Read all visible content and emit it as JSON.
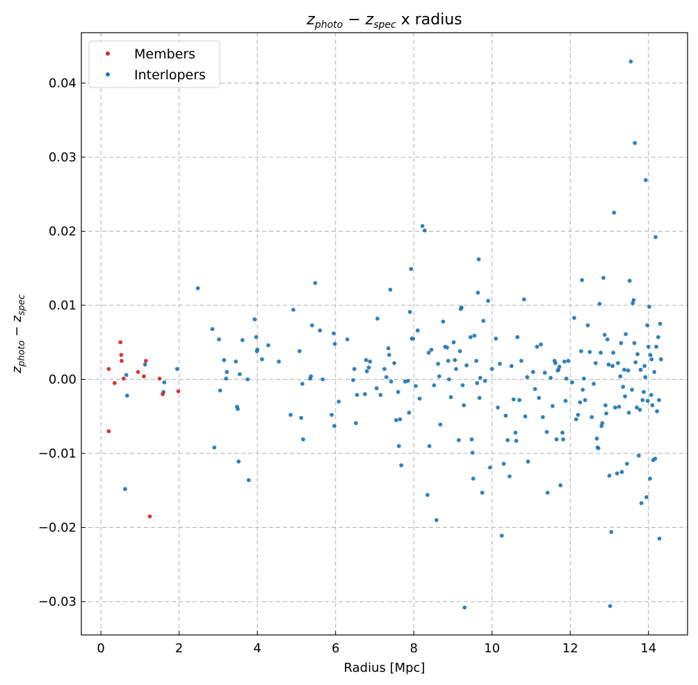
{
  "chart_data": {
    "type": "scatter",
    "title": "z_photo − z_spec x radius",
    "title_parts": {
      "var1": "z",
      "sub1": "photo",
      "op": " − ",
      "var2": "z",
      "sub2": "spec",
      "suffix": " x radius"
    },
    "xlabel": "Radius [Mpc]",
    "ylabel_parts": {
      "var1": "z",
      "sub1": "photo",
      "op": " − ",
      "var2": "z",
      "sub2": "spec"
    },
    "xlim": [
      -0.5,
      15.0
    ],
    "ylim": [
      -0.0345,
      0.0468
    ],
    "x_ticks": [
      0,
      2,
      4,
      6,
      8,
      10,
      12,
      14
    ],
    "x_tick_labels": [
      "0",
      "2",
      "4",
      "6",
      "8",
      "10",
      "12",
      "14"
    ],
    "y_ticks": [
      0.04,
      0.03,
      0.02,
      0.01,
      0.0,
      -0.01,
      -0.02,
      -0.03
    ],
    "y_tick_labels": [
      "0.04",
      "0.03",
      "0.02",
      "0.01",
      "0.00",
      "−0.01",
      "−0.02",
      "−0.03"
    ],
    "grid": true,
    "legend_position": "top-left",
    "series": [
      {
        "name": "Members",
        "color": "#d62728",
        "points": [
          [
            0.2,
            0.0014
          ],
          [
            0.2,
            -0.007
          ],
          [
            0.35,
            -0.0005
          ],
          [
            0.5,
            0.005
          ],
          [
            0.52,
            0.0033
          ],
          [
            0.53,
            0.0025
          ],
          [
            0.58,
            0.0001
          ],
          [
            0.95,
            0.001
          ],
          [
            1.1,
            0.0004
          ],
          [
            1.15,
            0.0025
          ],
          [
            1.25,
            -0.0185
          ],
          [
            1.5,
            0.0001
          ],
          [
            1.58,
            -0.002
          ],
          [
            1.98,
            -0.0016
          ]
        ]
      },
      {
        "name": "Interlopers",
        "color": "#1f77b4",
        "points": [
          [
            0.62,
            -0.0148
          ],
          [
            0.65,
            0.0006
          ],
          [
            0.67,
            -0.0022
          ],
          [
            1.13,
            0.002
          ],
          [
            1.6,
            -0.0017
          ],
          [
            1.62,
            -0.0004
          ],
          [
            1.95,
            0.0014
          ],
          [
            2.48,
            0.0123
          ],
          [
            2.85,
            0.0068
          ],
          [
            2.9,
            -0.0092
          ],
          [
            3.02,
            0.0054
          ],
          [
            3.05,
            -0.0015
          ],
          [
            3.15,
            0.0026
          ],
          [
            3.2,
            0.0001
          ],
          [
            3.22,
            0.001
          ],
          [
            3.45,
            0.0024
          ],
          [
            3.48,
            -0.0037
          ],
          [
            3.5,
            -0.004
          ],
          [
            3.52,
            -0.0111
          ],
          [
            3.55,
            0.0007
          ],
          [
            3.62,
            0.0053
          ],
          [
            3.75,
            0.0
          ],
          [
            3.78,
            -0.0136
          ],
          [
            3.93,
            0.0081
          ],
          [
            3.97,
            0.0057
          ],
          [
            3.99,
            0.0038
          ],
          [
            4.0,
            0.004
          ],
          [
            4.12,
            0.0027
          ],
          [
            4.28,
            0.0046
          ],
          [
            4.55,
            0.0024
          ],
          [
            4.85,
            -0.0048
          ],
          [
            4.92,
            0.0094
          ],
          [
            5.08,
            0.0038
          ],
          [
            5.12,
            -0.0052
          ],
          [
            5.15,
            -0.0006
          ],
          [
            5.17,
            -0.0081
          ],
          [
            5.35,
            0.0001
          ],
          [
            5.37,
            0.0004
          ],
          [
            5.4,
            0.0073
          ],
          [
            5.48,
            0.013
          ],
          [
            5.6,
            0.0066
          ],
          [
            5.67,
            0.0
          ],
          [
            5.9,
            -0.0048
          ],
          [
            5.95,
            0.0062
          ],
          [
            5.97,
            -0.0063
          ],
          [
            5.98,
            0.0048
          ],
          [
            6.08,
            -0.003
          ],
          [
            6.3,
            0.0054
          ],
          [
            6.45,
            -0.0001
          ],
          [
            6.48,
            0.0014
          ],
          [
            6.52,
            -0.0059
          ],
          [
            6.55,
            -0.0021
          ],
          [
            6.75,
            -0.002
          ],
          [
            6.78,
            0.0026
          ],
          [
            6.8,
            0.0011
          ],
          [
            6.85,
            0.0016
          ],
          [
            6.88,
            0.0024
          ],
          [
            7.05,
            -0.0012
          ],
          [
            7.07,
            0.0082
          ],
          [
            7.15,
            -0.0021
          ],
          [
            7.25,
            0.0014
          ],
          [
            7.3,
            0.0003
          ],
          [
            7.35,
            0.0042
          ],
          [
            7.37,
            0.0033
          ],
          [
            7.4,
            0.0121
          ],
          [
            7.42,
            -0.0003
          ],
          [
            7.5,
            0.0022
          ],
          [
            7.55,
            -0.0055
          ],
          [
            7.6,
            -0.0017
          ],
          [
            7.62,
            -0.009
          ],
          [
            7.65,
            -0.0054
          ],
          [
            7.68,
            -0.0116
          ],
          [
            7.78,
            -0.0003
          ],
          [
            7.85,
            -0.0002
          ],
          [
            7.88,
            -0.0045
          ],
          [
            7.9,
            0.0091
          ],
          [
            7.93,
            0.0149
          ],
          [
            7.95,
            0.0055
          ],
          [
            7.98,
            0.0055
          ],
          [
            8.05,
            -0.0009
          ],
          [
            8.1,
            0.0066
          ],
          [
            8.15,
            -0.0026
          ],
          [
            8.22,
            0.0207
          ],
          [
            8.28,
            0.0201
          ],
          [
            8.35,
            -0.0156
          ],
          [
            8.38,
            0.0036
          ],
          [
            8.4,
            -0.009
          ],
          [
            8.45,
            0.004
          ],
          [
            8.52,
            -0.0008
          ],
          [
            8.58,
            -0.019
          ],
          [
            8.62,
            0.0021
          ],
          [
            8.65,
            0.0004
          ],
          [
            8.68,
            -0.0061
          ],
          [
            8.75,
            0.0078
          ],
          [
            8.8,
            0.0044
          ],
          [
            8.85,
            0.0043
          ],
          [
            8.88,
            0.0025
          ],
          [
            8.9,
            0.0
          ],
          [
            8.95,
            -0.0024
          ],
          [
            9.02,
            0.005
          ],
          [
            9.05,
            0.0026
          ],
          [
            9.08,
            0.0014
          ],
          [
            9.15,
            -0.0082
          ],
          [
            9.18,
            0.0038
          ],
          [
            9.2,
            0.0095
          ],
          [
            9.22,
            0.0097
          ],
          [
            9.25,
            -0.0008
          ],
          [
            9.28,
            -0.0035
          ],
          [
            9.3,
            -0.0308
          ],
          [
            9.35,
            0.0019
          ],
          [
            9.45,
            0.0057
          ],
          [
            9.48,
            -0.0081
          ],
          [
            9.5,
            -0.0099
          ],
          [
            9.52,
            -0.0134
          ],
          [
            9.55,
            0.0059
          ],
          [
            9.6,
            0.0025
          ],
          [
            9.62,
            -0.0005
          ],
          [
            9.64,
            0.0117
          ],
          [
            9.66,
            0.0162
          ],
          [
            9.68,
            -0.0025
          ],
          [
            9.7,
            0.0002
          ],
          [
            9.75,
            -0.0153
          ],
          [
            9.78,
            0.0079
          ],
          [
            9.82,
            -0.0002
          ],
          [
            9.9,
            0.0106
          ],
          [
            9.95,
            -0.0119
          ],
          [
            10.0,
            0.0014
          ],
          [
            10.1,
            0.0055
          ],
          [
            10.15,
            -0.0038
          ],
          [
            10.2,
            0.0021
          ],
          [
            10.25,
            -0.0211
          ],
          [
            10.3,
            -0.0114
          ],
          [
            10.35,
            -0.0049
          ],
          [
            10.4,
            -0.0082
          ],
          [
            10.45,
            -0.0131
          ],
          [
            10.5,
            0.0018
          ],
          [
            10.55,
            -0.0027
          ],
          [
            10.6,
            -0.0072
          ],
          [
            10.62,
            -0.0083
          ],
          [
            10.65,
            0.0057
          ],
          [
            10.7,
            -0.0028
          ],
          [
            10.75,
            0.0025
          ],
          [
            10.82,
            0.0108
          ],
          [
            10.85,
            -0.005
          ],
          [
            10.9,
            0.0003
          ],
          [
            10.92,
            -0.0111
          ],
          [
            11.05,
            0.001
          ],
          [
            11.1,
            -0.0013
          ],
          [
            11.15,
            0.0044
          ],
          [
            11.2,
            -0.0025
          ],
          [
            11.25,
            0.0047
          ],
          [
            11.3,
            -0.0051
          ],
          [
            11.35,
            0.0009
          ],
          [
            11.4,
            -0.0071
          ],
          [
            11.42,
            -0.0153
          ],
          [
            11.5,
            0.0002
          ],
          [
            11.55,
            -0.0036
          ],
          [
            11.6,
            0.0025
          ],
          [
            11.62,
            0.0022
          ],
          [
            11.65,
            -0.0081
          ],
          [
            11.68,
            0.0012
          ],
          [
            11.7,
            0.0013
          ],
          [
            11.72,
            0.0017
          ],
          [
            11.75,
            -0.0143
          ],
          [
            11.8,
            -0.0072
          ],
          [
            11.82,
            -0.0081
          ],
          [
            11.85,
            0.0024
          ],
          [
            11.88,
            -0.0029
          ],
          [
            11.9,
            0.0001
          ],
          [
            11.95,
            0.0025
          ],
          [
            12.05,
            -0.0004
          ],
          [
            12.1,
            0.0083
          ],
          [
            12.15,
            -0.0054
          ],
          [
            12.2,
            -0.0048
          ],
          [
            12.25,
            -0.0031
          ],
          [
            12.28,
            0.0038
          ],
          [
            12.3,
            0.0134
          ],
          [
            12.32,
            -0.0014
          ],
          [
            12.35,
            0.0001
          ],
          [
            12.38,
            -0.0028
          ],
          [
            12.45,
            0.0073
          ],
          [
            12.5,
            0.0037
          ],
          [
            12.55,
            -0.0051
          ],
          [
            12.6,
            -0.0006
          ],
          [
            12.65,
            0.0022
          ],
          [
            12.68,
            -0.008
          ],
          [
            12.7,
            -0.0092
          ],
          [
            12.72,
            -0.0093
          ],
          [
            12.75,
            0.0102
          ],
          [
            12.78,
            0.0036
          ],
          [
            12.8,
            -0.0063
          ],
          [
            12.82,
            -0.0059
          ],
          [
            12.85,
            0.0137
          ],
          [
            12.88,
            0.006
          ],
          [
            12.9,
            -0.0035
          ],
          [
            12.92,
            -0.0046
          ],
          [
            12.95,
            0.0054
          ],
          [
            12.98,
            0.002
          ],
          [
            13.0,
            -0.013
          ],
          [
            13.02,
            -0.0306
          ],
          [
            13.05,
            -0.0206
          ],
          [
            13.08,
            0.0018
          ],
          [
            13.1,
            0.0036
          ],
          [
            13.12,
            0.0225
          ],
          [
            13.15,
            -0.0038
          ],
          [
            13.2,
            -0.0127
          ],
          [
            13.22,
            0.0022
          ],
          [
            13.25,
            -0.0037
          ],
          [
            13.28,
            0.0004
          ],
          [
            13.3,
            0.0049
          ],
          [
            13.32,
            -0.0125
          ],
          [
            13.35,
            -0.001
          ],
          [
            13.38,
            0.0013
          ],
          [
            13.4,
            -0.0023
          ],
          [
            13.42,
            0.0061
          ],
          [
            13.45,
            -0.0114
          ],
          [
            13.48,
            0.0012
          ],
          [
            13.5,
            -0.0045
          ],
          [
            13.52,
            0.0133
          ],
          [
            13.55,
            0.0429
          ],
          [
            13.58,
            -0.0014
          ],
          [
            13.6,
            0.0103
          ],
          [
            13.62,
            0.0107
          ],
          [
            13.64,
            0.0049
          ],
          [
            13.65,
            0.0319
          ],
          [
            13.67,
            0.0023
          ],
          [
            13.7,
            -0.0038
          ],
          [
            13.72,
            0.0034
          ],
          [
            13.75,
            -0.0103
          ],
          [
            13.78,
            -0.0041
          ],
          [
            13.8,
            0.0013
          ],
          [
            13.82,
            -0.0167
          ],
          [
            13.85,
            -0.0028
          ],
          [
            13.88,
            -0.0017
          ],
          [
            13.9,
            0.0018
          ],
          [
            13.92,
            0.0003
          ],
          [
            13.93,
            0.0269
          ],
          [
            13.95,
            -0.0159
          ],
          [
            13.97,
            0.0073
          ],
          [
            13.98,
            -0.0029
          ],
          [
            14.0,
            0.0044
          ],
          [
            14.02,
            0.0098
          ],
          [
            14.04,
            -0.0134
          ],
          [
            14.05,
            0.0033
          ],
          [
            14.07,
            -0.0021
          ],
          [
            14.08,
            0.0027
          ],
          [
            14.1,
            -0.0035
          ],
          [
            14.12,
            -0.0109
          ],
          [
            14.15,
            0.001
          ],
          [
            14.17,
            -0.0107
          ],
          [
            14.18,
            0.0192
          ],
          [
            14.2,
            0.0044
          ],
          [
            14.22,
            -0.0043
          ],
          [
            14.25,
            0.0057
          ],
          [
            14.27,
            -0.0028
          ],
          [
            14.28,
            -0.0215
          ],
          [
            14.3,
            0.0075
          ],
          [
            14.32,
            0.0027
          ]
        ]
      }
    ]
  }
}
